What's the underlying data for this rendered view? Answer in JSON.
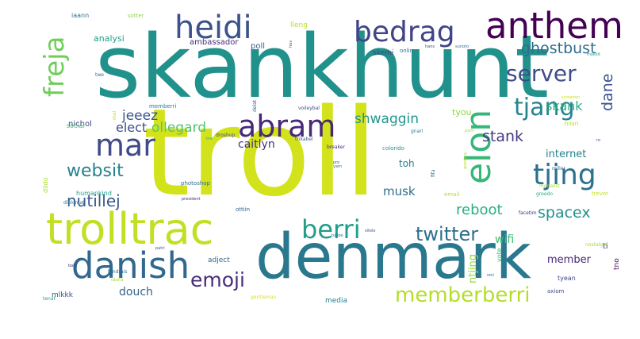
{
  "word_cloud": {
    "words": [
      {
        "text": "troll",
        "color": "#d2e21b"
      },
      {
        "text": "skankhunt",
        "color": "#21918c"
      },
      {
        "text": "denmark",
        "color": "#2a788e"
      },
      {
        "text": "trolltrac",
        "color": "#c2df23"
      },
      {
        "text": "danish",
        "color": "#31688e"
      },
      {
        "text": "anthem",
        "color": "#440154"
      },
      {
        "text": "heidi",
        "color": "#3b528b"
      },
      {
        "text": "bedrag",
        "color": "#414487"
      },
      {
        "text": "abram",
        "color": "#482878"
      },
      {
        "text": "elon",
        "color": "#35b779"
      },
      {
        "text": "mar",
        "color": "#3e4a89"
      },
      {
        "text": "tjing",
        "color": "#2c728e"
      },
      {
        "text": "freja",
        "color": "#6ece58"
      },
      {
        "text": "berri",
        "color": "#1f9e89"
      },
      {
        "text": "tjang",
        "color": "#25848e"
      },
      {
        "text": "server",
        "color": "#3e4c8a"
      },
      {
        "text": "memberberri",
        "color": "#b5de2b"
      },
      {
        "text": "emoji",
        "color": "#472d7b"
      },
      {
        "text": "twitter",
        "color": "#2d708e"
      },
      {
        "text": "websit",
        "color": "#26828e"
      },
      {
        "text": "ghostbust",
        "color": "#2e6e8e"
      },
      {
        "text": "nutillej",
        "color": "#38598c"
      },
      {
        "text": "spacex",
        "color": "#21918c"
      },
      {
        "text": "reboot",
        "color": "#2ab07f"
      },
      {
        "text": "dane",
        "color": "#3b528b"
      },
      {
        "text": "stank",
        "color": "#443983"
      },
      {
        "text": "jeeez",
        "color": "#39568c"
      },
      {
        "text": "elect",
        "color": "#3d4e8a"
      },
      {
        "text": "ollegard",
        "color": "#52c569"
      },
      {
        "text": "shwaggin",
        "color": "#1f978b"
      },
      {
        "text": "skank",
        "color": "#27ad81"
      },
      {
        "text": "caitlyn",
        "color": "#46327e"
      },
      {
        "text": "musk",
        "color": "#2f6c8e"
      },
      {
        "text": "internet",
        "color": "#26828e"
      },
      {
        "text": "wifi",
        "color": "#3dbc74"
      },
      {
        "text": "douch",
        "color": "#34618d"
      },
      {
        "text": "member",
        "color": "#482475"
      },
      {
        "text": "toh",
        "color": "#287d8e"
      },
      {
        "text": "ntjing",
        "color": "#95d840"
      },
      {
        "text": "analysi",
        "color": "#1fa088"
      },
      {
        "text": "ambassador",
        "color": "#472a7a"
      },
      {
        "text": "poll",
        "color": "#365d8d"
      },
      {
        "text": "skemi",
        "color": "#404688"
      },
      {
        "text": "lleng",
        "color": "#b8de29"
      },
      {
        "text": "tyou",
        "color": "#8bd646"
      },
      {
        "text": "nichol",
        "color": "#433e85"
      },
      {
        "text": "social",
        "color": "#3aba76"
      },
      {
        "text": "humankind",
        "color": "#1e9c89"
      },
      {
        "text": "adject",
        "color": "#31688e"
      },
      {
        "text": "mlkkk",
        "color": "#3b528b"
      },
      {
        "text": "media",
        "color": "#26828e"
      },
      {
        "text": "photoshop",
        "color": "#2c728e"
      },
      {
        "text": "dildo",
        "color": "#a8db34"
      },
      {
        "text": "memberri",
        "color": "#287c8e"
      },
      {
        "text": "ti",
        "color": "#443a83"
      },
      {
        "text": "vote",
        "color": "#35b779"
      },
      {
        "text": "tno",
        "color": "#440154"
      },
      {
        "text": "tyean",
        "color": "#3f4889"
      },
      {
        "text": "email",
        "color": "#b0dd2f"
      },
      {
        "text": "laura",
        "color": "#a2da37"
      },
      {
        "text": "fundrais",
        "color": "#2e6e8e"
      },
      {
        "text": "axiom",
        "color": "#3d4d8a"
      },
      {
        "text": "hilari",
        "color": "#b5de2b"
      },
      {
        "text": "tenat",
        "color": "#22a785"
      },
      {
        "text": "gentleman",
        "color": "#d8e219"
      },
      {
        "text": "droshup",
        "color": "#3c4f8a"
      },
      {
        "text": "breaker",
        "color": "#482878"
      },
      {
        "text": "colorido",
        "color": "#20928c"
      },
      {
        "text": "miller",
        "color": "#30698e"
      },
      {
        "text": "gnari",
        "color": "#287d8e"
      },
      {
        "text": "trikabel",
        "color": "#38598c"
      },
      {
        "text": "voileybal",
        "color": "#404588"
      },
      {
        "text": "delat",
        "color": "#3a548c"
      },
      {
        "text": "iaann",
        "color": "#2b748e"
      },
      {
        "text": "sotter",
        "color": "#8fd744"
      },
      {
        "text": "onlin",
        "color": "#2f6b8e"
      },
      {
        "text": "twe",
        "color": "#2e6f8e"
      },
      {
        "text": "mai",
        "color": "#c0df25"
      },
      {
        "text": "diplomat",
        "color": "#2a788e"
      },
      {
        "text": "ottiin",
        "color": "#34618d"
      },
      {
        "text": "fifa",
        "color": "#2c738e"
      },
      {
        "text": "greedo",
        "color": "#29af7f"
      },
      {
        "text": "trevor",
        "color": "#c5e021"
      },
      {
        "text": "facetim",
        "color": "#46337f"
      },
      {
        "text": "nostalgia",
        "color": "#9dd93b"
      },
      {
        "text": "medalist",
        "color": "#a5db36"
      },
      {
        "text": "sunoto",
        "color": "#2d718e"
      },
      {
        "text": "president",
        "color": "#46307e"
      },
      {
        "text": "patri",
        "color": "#365c8d"
      },
      {
        "text": "tobbe",
        "color": "#2a788e"
      },
      {
        "text": "sitelo",
        "color": "#3b528b"
      },
      {
        "text": "screamer",
        "color": "#c8e020"
      },
      {
        "text": "goodbuy",
        "color": "#b2dd2d"
      },
      {
        "text": "mokkit",
        "color": "#1f9a8a"
      },
      {
        "text": "yarn",
        "color": "#2c728e"
      },
      {
        "text": "huv",
        "color": "#3f4788"
      },
      {
        "text": "hans",
        "color": "#3e4a89"
      },
      {
        "text": "bak",
        "color": "#433d84"
      },
      {
        "text": "pro",
        "color": "#365d8d"
      },
      {
        "text": "tne",
        "color": "#29af7f"
      },
      {
        "text": "patti",
        "color": "#b0dd2f"
      },
      {
        "text": "smi",
        "color": "#31688e"
      },
      {
        "text": "ro",
        "color": "#3b528b"
      }
    ]
  }
}
